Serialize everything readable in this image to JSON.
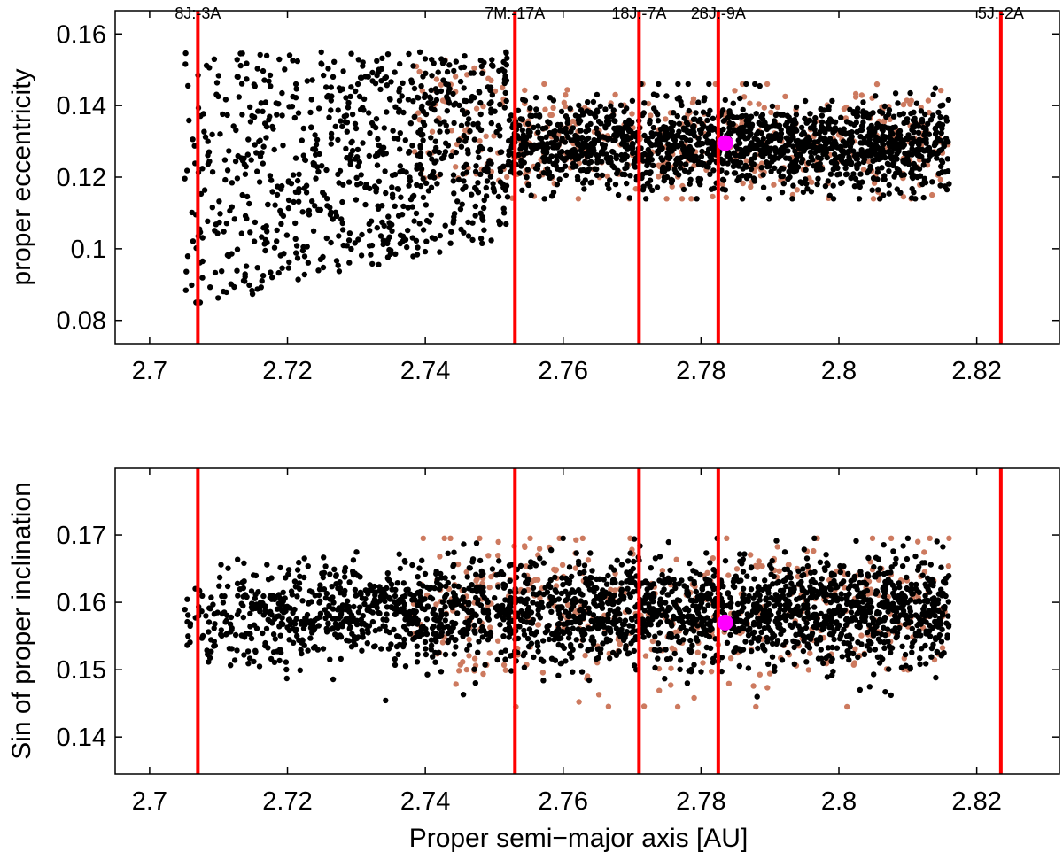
{
  "chart_data": [
    {
      "type": "scatter",
      "panel": "top",
      "title": "",
      "xlabel": "",
      "ylabel": "proper eccentricity",
      "xlim": [
        2.695,
        2.832
      ],
      "ylim": [
        0.0735,
        0.1665
      ],
      "xticks": [
        2.7,
        2.72,
        2.74,
        2.76,
        2.78,
        2.8,
        2.82
      ],
      "xtick_labels": [
        "2.7",
        "2.72",
        "2.74",
        "2.76",
        "2.78",
        "2.8",
        "2.82"
      ],
      "yticks": [
        0.08,
        0.1,
        0.12,
        0.14,
        0.16
      ],
      "ytick_labels": [
        "0.08",
        "0.1",
        "0.12",
        "0.14",
        "0.16"
      ],
      "grid": false,
      "resonances": [
        {
          "label": "8J:-3A",
          "a": 2.707
        },
        {
          "label": "7M:-17A",
          "a": 2.753
        },
        {
          "label": "18J:-7A",
          "a": 2.771
        },
        {
          "label": "23J:-9A",
          "a": 2.7825
        },
        {
          "label": "5J:-2A",
          "a": 2.8235
        }
      ],
      "highlight": {
        "a": 2.7835,
        "value": 0.1295,
        "color": "#ff00ff"
      },
      "series": [
        {
          "color": "#000000",
          "a_range": [
            2.705,
            2.816
          ],
          "value_range": [
            0.083,
            0.156
          ]
        },
        {
          "color": "#cd7a5f",
          "a_range": [
            2.735,
            2.815
          ],
          "value_range": [
            0.115,
            0.153
          ]
        }
      ]
    },
    {
      "type": "scatter",
      "panel": "bottom",
      "title": "",
      "xlabel": "Proper semi−major axis [AU]",
      "ylabel": "Sin of proper inclination",
      "xlim": [
        2.695,
        2.832
      ],
      "ylim": [
        0.1345,
        0.18
      ],
      "xticks": [
        2.7,
        2.72,
        2.74,
        2.76,
        2.78,
        2.8,
        2.82
      ],
      "xtick_labels": [
        "2.7",
        "2.72",
        "2.74",
        "2.76",
        "2.78",
        "2.8",
        "2.82"
      ],
      "yticks": [
        0.14,
        0.15,
        0.16,
        0.17
      ],
      "ytick_labels": [
        "0.14",
        "0.15",
        "0.16",
        "0.17"
      ],
      "grid": false,
      "resonances": [
        {
          "label": "8J:-3A",
          "a": 2.707
        },
        {
          "label": "7M:-17A",
          "a": 2.753
        },
        {
          "label": "18J:-7A",
          "a": 2.771
        },
        {
          "label": "23J:-9A",
          "a": 2.7825
        },
        {
          "label": "5J:-2A",
          "a": 2.8235
        }
      ],
      "highlight": {
        "a": 2.7835,
        "value": 0.157,
        "color": "#ff00ff"
      },
      "series": [
        {
          "color": "#000000",
          "a_range": [
            2.705,
            2.816
          ],
          "value_range": [
            0.1445,
            0.17
          ]
        },
        {
          "color": "#cd7a5f",
          "a_range": [
            2.74,
            2.815
          ],
          "value_range": [
            0.1465,
            0.169
          ]
        }
      ]
    }
  ],
  "colors": {
    "resonance_line": "#ff0000",
    "member": "#000000",
    "background_object": "#cd7a5f",
    "highlight": "#ff00ff"
  }
}
